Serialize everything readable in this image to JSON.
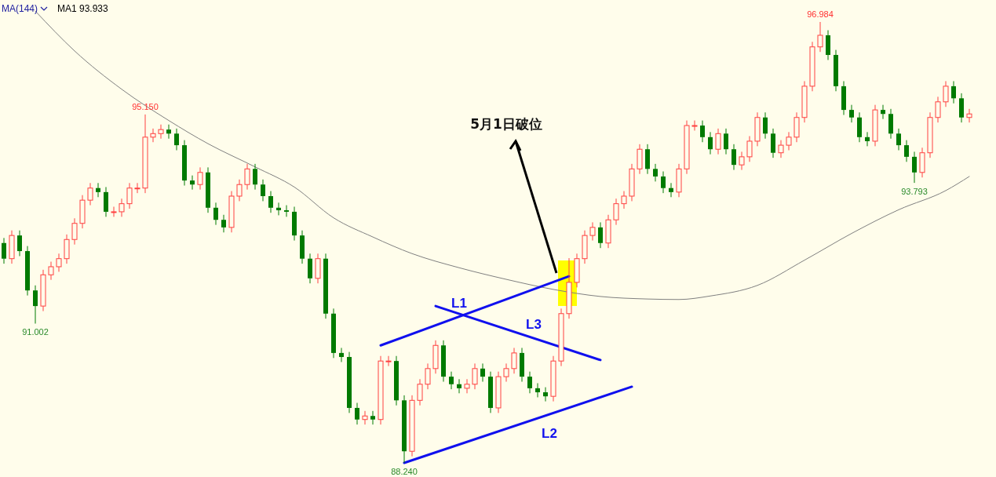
{
  "chart_data": {
    "type": "candlestick",
    "tick_labels": false,
    "categories": [
      null,
      null,
      null,
      null,
      null,
      null,
      null,
      null,
      null,
      null,
      null,
      null,
      null,
      null,
      null,
      null,
      null,
      null,
      null,
      null,
      null,
      null,
      null,
      null,
      null,
      null,
      null,
      null,
      null,
      null,
      null,
      null,
      null,
      null,
      null,
      null,
      null,
      null,
      null,
      null,
      null,
      null,
      null,
      null,
      null,
      null,
      null,
      null,
      null,
      null,
      null,
      null,
      null,
      null,
      null,
      null,
      null,
      null,
      null,
      null,
      null,
      null,
      null,
      null,
      null,
      null,
      null,
      null,
      null,
      null,
      null,
      null,
      null,
      null,
      null,
      null,
      null,
      null,
      null,
      null,
      null,
      null,
      null,
      null,
      null,
      null,
      null,
      null,
      null,
      null,
      null,
      null,
      null,
      null,
      null,
      null,
      null,
      null,
      null,
      null,
      null,
      null,
      null,
      null,
      null,
      null,
      null,
      null,
      null,
      null,
      null,
      null,
      null,
      null,
      null,
      null,
      null,
      null,
      null,
      null,
      null,
      null,
      null,
      null
    ],
    "ohlc": [
      [
        92.6,
        92.7,
        92.19,
        92.29
      ],
      [
        92.29,
        92.85,
        92.19,
        92.75
      ],
      [
        92.75,
        92.85,
        92.34,
        92.44
      ],
      [
        92.44,
        92.54,
        91.56,
        91.66
      ],
      [
        91.66,
        91.76,
        91.002,
        91.35
      ],
      [
        91.35,
        92.07,
        91.25,
        91.97
      ],
      [
        91.97,
        92.23,
        91.87,
        92.13
      ],
      [
        92.13,
        92.39,
        92.03,
        92.29
      ],
      [
        92.29,
        92.77,
        92.19,
        92.67
      ],
      [
        92.67,
        93.09,
        92.57,
        92.99
      ],
      [
        92.99,
        93.55,
        92.89,
        93.45
      ],
      [
        93.45,
        93.79,
        93.35,
        93.69
      ],
      [
        93.69,
        93.79,
        93.51,
        93.61
      ],
      [
        93.61,
        93.71,
        93.12,
        93.22
      ],
      [
        93.22,
        93.32,
        93.12,
        93.22
      ],
      [
        93.22,
        93.48,
        93.12,
        93.38
      ],
      [
        93.38,
        93.79,
        93.28,
        93.69
      ],
      [
        93.69,
        93.79,
        93.59,
        93.69
      ],
      [
        93.69,
        95.15,
        93.59,
        94.7
      ],
      [
        94.7,
        94.87,
        94.6,
        94.77
      ],
      [
        94.77,
        94.95,
        94.67,
        94.85
      ],
      [
        94.85,
        94.95,
        94.67,
        94.77
      ],
      [
        94.77,
        94.87,
        94.44,
        94.54
      ],
      [
        94.54,
        94.64,
        93.74,
        93.84
      ],
      [
        93.84,
        93.94,
        93.66,
        93.76
      ],
      [
        93.76,
        94.1,
        93.66,
        94.0
      ],
      [
        94.0,
        94.1,
        93.2,
        93.3
      ],
      [
        93.3,
        93.4,
        92.96,
        93.06
      ],
      [
        93.06,
        93.16,
        92.81,
        92.91
      ],
      [
        92.91,
        93.63,
        92.81,
        93.53
      ],
      [
        93.53,
        93.86,
        93.43,
        93.76
      ],
      [
        93.76,
        94.17,
        93.66,
        94.07
      ],
      [
        94.07,
        94.17,
        93.66,
        93.76
      ],
      [
        93.76,
        93.86,
        93.43,
        93.53
      ],
      [
        93.53,
        93.63,
        93.2,
        93.3
      ],
      [
        93.3,
        93.4,
        93.15,
        93.25
      ],
      [
        93.25,
        93.35,
        93.12,
        93.22
      ],
      [
        93.22,
        93.32,
        92.65,
        92.75
      ],
      [
        92.75,
        92.85,
        92.19,
        92.29
      ],
      [
        92.29,
        92.39,
        91.8,
        91.9
      ],
      [
        91.9,
        92.39,
        91.8,
        92.29
      ],
      [
        92.29,
        92.39,
        91.1,
        91.2
      ],
      [
        91.2,
        91.3,
        90.32,
        90.42
      ],
      [
        90.42,
        90.52,
        90.24,
        90.34
      ],
      [
        90.34,
        90.44,
        89.23,
        89.33
      ],
      [
        89.33,
        89.43,
        89.0,
        89.1
      ],
      [
        89.1,
        89.27,
        89.0,
        89.17
      ],
      [
        89.17,
        89.27,
        89.0,
        89.1
      ],
      [
        89.1,
        90.36,
        89.0,
        90.26
      ],
      [
        90.26,
        90.36,
        90.16,
        90.26
      ],
      [
        90.26,
        90.36,
        89.38,
        89.48
      ],
      [
        89.48,
        89.58,
        88.24,
        88.47
      ],
      [
        88.47,
        89.58,
        88.37,
        89.48
      ],
      [
        89.48,
        89.9,
        89.38,
        89.8
      ],
      [
        89.8,
        90.21,
        89.7,
        90.11
      ],
      [
        90.11,
        90.67,
        90.01,
        90.57
      ],
      [
        90.57,
        90.67,
        89.85,
        89.95
      ],
      [
        89.95,
        90.05,
        89.7,
        89.8
      ],
      [
        89.8,
        89.9,
        89.62,
        89.72
      ],
      [
        89.72,
        89.9,
        89.62,
        89.8
      ],
      [
        89.8,
        90.21,
        89.7,
        90.11
      ],
      [
        90.11,
        90.21,
        89.85,
        89.95
      ],
      [
        89.95,
        90.05,
        89.23,
        89.33
      ],
      [
        89.33,
        90.05,
        89.23,
        89.95
      ],
      [
        89.95,
        90.21,
        89.85,
        90.11
      ],
      [
        90.11,
        90.52,
        90.01,
        90.42
      ],
      [
        90.42,
        90.52,
        89.85,
        89.95
      ],
      [
        89.95,
        90.05,
        89.62,
        89.72
      ],
      [
        89.72,
        89.82,
        89.54,
        89.64
      ],
      [
        89.64,
        89.74,
        89.46,
        89.56
      ],
      [
        89.56,
        90.36,
        89.46,
        90.26
      ],
      [
        90.26,
        91.3,
        90.16,
        91.2
      ],
      [
        91.2,
        92.3,
        91.1,
        91.82
      ],
      [
        91.82,
        92.39,
        91.72,
        92.29
      ],
      [
        92.29,
        92.85,
        92.19,
        92.75
      ],
      [
        92.75,
        93.01,
        92.65,
        92.91
      ],
      [
        92.91,
        93.01,
        92.5,
        92.6
      ],
      [
        92.6,
        93.16,
        92.5,
        93.06
      ],
      [
        93.06,
        93.48,
        92.96,
        93.38
      ],
      [
        93.38,
        93.63,
        93.28,
        93.53
      ],
      [
        93.53,
        94.17,
        93.43,
        94.07
      ],
      [
        94.07,
        94.56,
        93.97,
        94.46
      ],
      [
        94.46,
        94.56,
        93.97,
        94.07
      ],
      [
        94.07,
        94.17,
        93.82,
        93.92
      ],
      [
        93.92,
        94.02,
        93.59,
        93.69
      ],
      [
        93.69,
        93.79,
        93.51,
        93.61
      ],
      [
        93.61,
        94.17,
        93.51,
        94.07
      ],
      [
        94.07,
        95.03,
        93.97,
        94.93
      ],
      [
        94.93,
        95.03,
        94.83,
        94.93
      ],
      [
        94.93,
        95.03,
        94.6,
        94.7
      ],
      [
        94.7,
        94.8,
        94.36,
        94.46
      ],
      [
        94.46,
        94.87,
        94.36,
        94.77
      ],
      [
        94.77,
        94.87,
        94.36,
        94.46
      ],
      [
        94.46,
        94.56,
        94.05,
        94.15
      ],
      [
        94.15,
        94.41,
        94.05,
        94.31
      ],
      [
        94.31,
        94.72,
        94.21,
        94.62
      ],
      [
        94.62,
        95.19,
        94.52,
        95.09
      ],
      [
        95.09,
        95.19,
        94.67,
        94.77
      ],
      [
        94.77,
        94.87,
        94.29,
        94.39
      ],
      [
        94.39,
        94.64,
        94.29,
        94.54
      ],
      [
        94.54,
        94.8,
        94.44,
        94.7
      ],
      [
        94.7,
        95.19,
        94.6,
        95.09
      ],
      [
        95.09,
        95.81,
        94.99,
        95.71
      ],
      [
        95.71,
        96.59,
        95.61,
        96.49
      ],
      [
        96.49,
        96.984,
        96.39,
        96.72
      ],
      [
        96.72,
        96.82,
        96.23,
        96.33
      ],
      [
        96.33,
        96.43,
        95.61,
        95.71
      ],
      [
        95.71,
        95.81,
        95.14,
        95.24
      ],
      [
        95.24,
        95.34,
        94.99,
        95.09
      ],
      [
        95.09,
        95.19,
        94.6,
        94.7
      ],
      [
        94.7,
        94.8,
        94.52,
        94.62
      ],
      [
        94.62,
        95.34,
        94.52,
        95.24
      ],
      [
        95.24,
        95.34,
        95.06,
        95.16
      ],
      [
        95.16,
        95.26,
        94.67,
        94.77
      ],
      [
        94.77,
        94.87,
        94.44,
        94.54
      ],
      [
        94.54,
        94.64,
        94.21,
        94.31
      ],
      [
        94.31,
        94.41,
        93.793,
        94.0
      ],
      [
        94.0,
        94.49,
        93.9,
        94.39
      ],
      [
        94.39,
        95.19,
        94.29,
        95.09
      ],
      [
        95.09,
        95.5,
        94.99,
        95.4
      ],
      [
        95.4,
        95.81,
        95.3,
        95.71
      ],
      [
        95.71,
        95.81,
        95.37,
        95.47
      ],
      [
        95.47,
        95.57,
        94.99,
        95.09
      ],
      [
        95.09,
        95.26,
        94.99,
        95.16
      ]
    ],
    "colors": [
      "#007a00",
      "#ff4040",
      "#007a00",
      "#007a00",
      "#007a00",
      "#ff4040",
      "#ff4040",
      "#ff4040",
      "#ff4040",
      "#ff4040",
      "#ff4040",
      "#ff4040",
      "#007a00",
      "#007a00",
      "#ff4040",
      "#ff4040",
      "#ff4040",
      "#ff4040",
      "#ff4040",
      "#ff4040",
      "#ff4040",
      "#007a00",
      "#007a00",
      "#007a00",
      "#007a00",
      "#ff4040",
      "#007a00",
      "#007a00",
      "#007a00",
      "#ff4040",
      "#ff4040",
      "#ff4040",
      "#007a00",
      "#007a00",
      "#007a00",
      "#007a00",
      "#007a00",
      "#007a00",
      "#007a00",
      "#007a00",
      "#ff4040",
      "#007a00",
      "#007a00",
      "#007a00",
      "#007a00",
      "#007a00",
      "#ff4040",
      "#007a00",
      "#ff4040",
      "#ff4040",
      "#007a00",
      "#007a00",
      "#ff4040",
      "#ff4040",
      "#ff4040",
      "#ff4040",
      "#007a00",
      "#007a00",
      "#007a00",
      "#ff4040",
      "#ff4040",
      "#007a00",
      "#007a00",
      "#ff4040",
      "#ff4040",
      "#ff4040",
      "#007a00",
      "#007a00",
      "#007a00",
      "#007a00",
      "#ff4040",
      "#ff4040",
      "#ff4040",
      "#ff4040",
      "#ff4040",
      "#ff4040",
      "#007a00",
      "#ff4040",
      "#ff4040",
      "#ff4040",
      "#ff4040",
      "#ff4040",
      "#007a00",
      "#007a00",
      "#007a00",
      "#007a00",
      "#ff4040",
      "#ff4040",
      "#ff4040",
      "#007a00",
      "#007a00",
      "#ff4040",
      "#007a00",
      "#007a00",
      "#ff4040",
      "#ff4040",
      "#ff4040",
      "#007a00",
      "#007a00",
      "#ff4040",
      "#ff4040",
      "#ff4040",
      "#ff4040",
      "#ff4040",
      "#ff4040",
      "#007a00",
      "#007a00",
      "#007a00",
      "#007a00",
      "#007a00",
      "#007a00",
      "#ff4040",
      "#007a00",
      "#007a00",
      "#007a00",
      "#007a00",
      "#007a00",
      "#ff4040",
      "#ff4040",
      "#ff4040",
      "#ff4040",
      "#007a00",
      "#007a00",
      "#ff4040"
    ],
    "series": [
      {
        "type": "line",
        "color": "#808080",
        "values": [
          null,
          null,
          null,
          null,
          97.2,
          null,
          null,
          null,
          null,
          96.41,
          null,
          null,
          null,
          null,
          null,
          95.65,
          null,
          null,
          null,
          null,
          null,
          95.03,
          null,
          null,
          null,
          null,
          94.57,
          null,
          null,
          null,
          null,
          null,
          94.11,
          null,
          null,
          null,
          null,
          93.71,
          null,
          null,
          null,
          null,
          93.1,
          null,
          null,
          null,
          null,
          92.72,
          null,
          null,
          null,
          null,
          92.39,
          null,
          null,
          null,
          null,
          null,
          92.11,
          null,
          null,
          null,
          null,
          null,
          91.88,
          null,
          null,
          null,
          null,
          null,
          91.68,
          null,
          null,
          null,
          null,
          null,
          91.54,
          null,
          null,
          null,
          null,
          null,
          91.49,
          null,
          null,
          null,
          91.48,
          null,
          null,
          null,
          91.55,
          null,
          null,
          null,
          null,
          null,
          91.76,
          null,
          null,
          null,
          null,
          null,
          92.26,
          null,
          null,
          null,
          null,
          null,
          92.79,
          null,
          null,
          null,
          null,
          null,
          93.26,
          null,
          null,
          null,
          null,
          null,
          93.64,
          null,
          null,
          93.92
        ]
      },
      {
        "type": "line",
        "name": "L1",
        "color": "#1010ee",
        "values": [
          null,
          null,
          null,
          null,
          null,
          null,
          null,
          null,
          null,
          null,
          null,
          null,
          null,
          null,
          null,
          null,
          null,
          null,
          null,
          null,
          null,
          null,
          null,
          null,
          null,
          null,
          null,
          null,
          null,
          null,
          null,
          null,
          null,
          null,
          null,
          null,
          null,
          null,
          null,
          null,
          null,
          null,
          null,
          null,
          null,
          null,
          null,
          null,
          90.57,
          null,
          null,
          null,
          null,
          null,
          null,
          null,
          null,
          null,
          null,
          null,
          null,
          null,
          null,
          null,
          null,
          null,
          null,
          null,
          null,
          null,
          null,
          null,
          91.94,
          null,
          null,
          null,
          null,
          null,
          null,
          null,
          null,
          null,
          null,
          null,
          null,
          null,
          null,
          null,
          null,
          null,
          null,
          null,
          null,
          null,
          null,
          null,
          null,
          null,
          null,
          null,
          null,
          null,
          null,
          null,
          null,
          null,
          null,
          null,
          null,
          null,
          null,
          null,
          null,
          null,
          null,
          null,
          null,
          null,
          null,
          null,
          null,
          null,
          null,
          null
        ]
      },
      {
        "type": "line",
        "name": "L2",
        "color": "#1010ee",
        "values": [
          null,
          null,
          null,
          null,
          null,
          null,
          null,
          null,
          null,
          null,
          null,
          null,
          null,
          null,
          null,
          null,
          null,
          null,
          null,
          null,
          null,
          null,
          null,
          null,
          null,
          null,
          null,
          null,
          null,
          null,
          null,
          null,
          null,
          null,
          null,
          null,
          null,
          null,
          null,
          null,
          null,
          null,
          null,
          null,
          null,
          null,
          null,
          null,
          null,
          null,
          null,
          88.24,
          null,
          null,
          null,
          null,
          null,
          null,
          null,
          null,
          null,
          null,
          null,
          null,
          null,
          null,
          null,
          null,
          null,
          null,
          null,
          null,
          null,
          null,
          null,
          null,
          null,
          null,
          null,
          null,
          89.75,
          null,
          null,
          null,
          null,
          null,
          null,
          null,
          null,
          null,
          null,
          null,
          null,
          null,
          null,
          null,
          null,
          null,
          null,
          null,
          null,
          null,
          null,
          null,
          null,
          null,
          null,
          null,
          null,
          null,
          null,
          null,
          null,
          null,
          null,
          null,
          null,
          null,
          null,
          null,
          null,
          null,
          null,
          null
        ]
      },
      {
        "type": "line",
        "name": "L3",
        "color": "#1010ee",
        "values": [
          null,
          null,
          null,
          null,
          null,
          null,
          null,
          null,
          null,
          null,
          null,
          null,
          null,
          null,
          null,
          null,
          null,
          null,
          null,
          null,
          null,
          null,
          null,
          null,
          null,
          null,
          null,
          null,
          null,
          null,
          null,
          null,
          null,
          null,
          null,
          null,
          null,
          null,
          null,
          null,
          null,
          null,
          null,
          null,
          null,
          null,
          null,
          null,
          null,
          null,
          null,
          null,
          null,
          null,
          null,
          91.35,
          null,
          null,
          null,
          null,
          null,
          null,
          null,
          null,
          null,
          null,
          null,
          null,
          null,
          null,
          null,
          null,
          null,
          null,
          null,
          null,
          90.28,
          null,
          null,
          null,
          null,
          null,
          null,
          null,
          null,
          null,
          null,
          null,
          null,
          null,
          null,
          null,
          null,
          null,
          null,
          null,
          null,
          null,
          null,
          null,
          null,
          null,
          null,
          null,
          null,
          null,
          null,
          null,
          null,
          null,
          null,
          null,
          null,
          null,
          null,
          null,
          null,
          null,
          null,
          null,
          null,
          null,
          null,
          null
        ]
      }
    ],
    "annotations": [
      "MA(144)",
      "MA1 93.933",
      "5月1日破位",
      {
        "text": "95.150",
        "y": 95.15
      },
      {
        "text": "91.002",
        "y": 91.002
      },
      {
        "text": "88.240",
        "y": 88.24
      },
      {
        "text": "96.984",
        "y": 96.984
      },
      {
        "text": "93.793",
        "y": 93.793
      }
    ]
  }
}
